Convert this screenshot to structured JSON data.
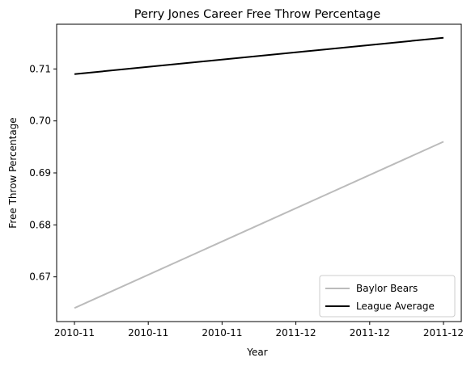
{
  "chart_data": {
    "type": "line",
    "title": "Perry Jones Career Free Throw Percentage",
    "xlabel": "Year",
    "ylabel": "Free Throw Percentage",
    "x_tick_labels": [
      "2010-11",
      "2010-11",
      "2010-11",
      "2011-12",
      "2011-12",
      "2011-12"
    ],
    "x": [
      "2010-11",
      "2011-12"
    ],
    "ylim": [
      0.6614,
      0.7186
    ],
    "y_ticks": [
      "0.67",
      "0.68",
      "0.69",
      "0.70",
      "0.71"
    ],
    "grid": false,
    "legend_position": "lower right",
    "series": [
      {
        "name": "Baylor Bears",
        "values": [
          0.664,
          0.696
        ],
        "color": "#bbbbbb"
      },
      {
        "name": "League Average",
        "values": [
          0.709,
          0.716
        ],
        "color": "#000000"
      }
    ]
  }
}
